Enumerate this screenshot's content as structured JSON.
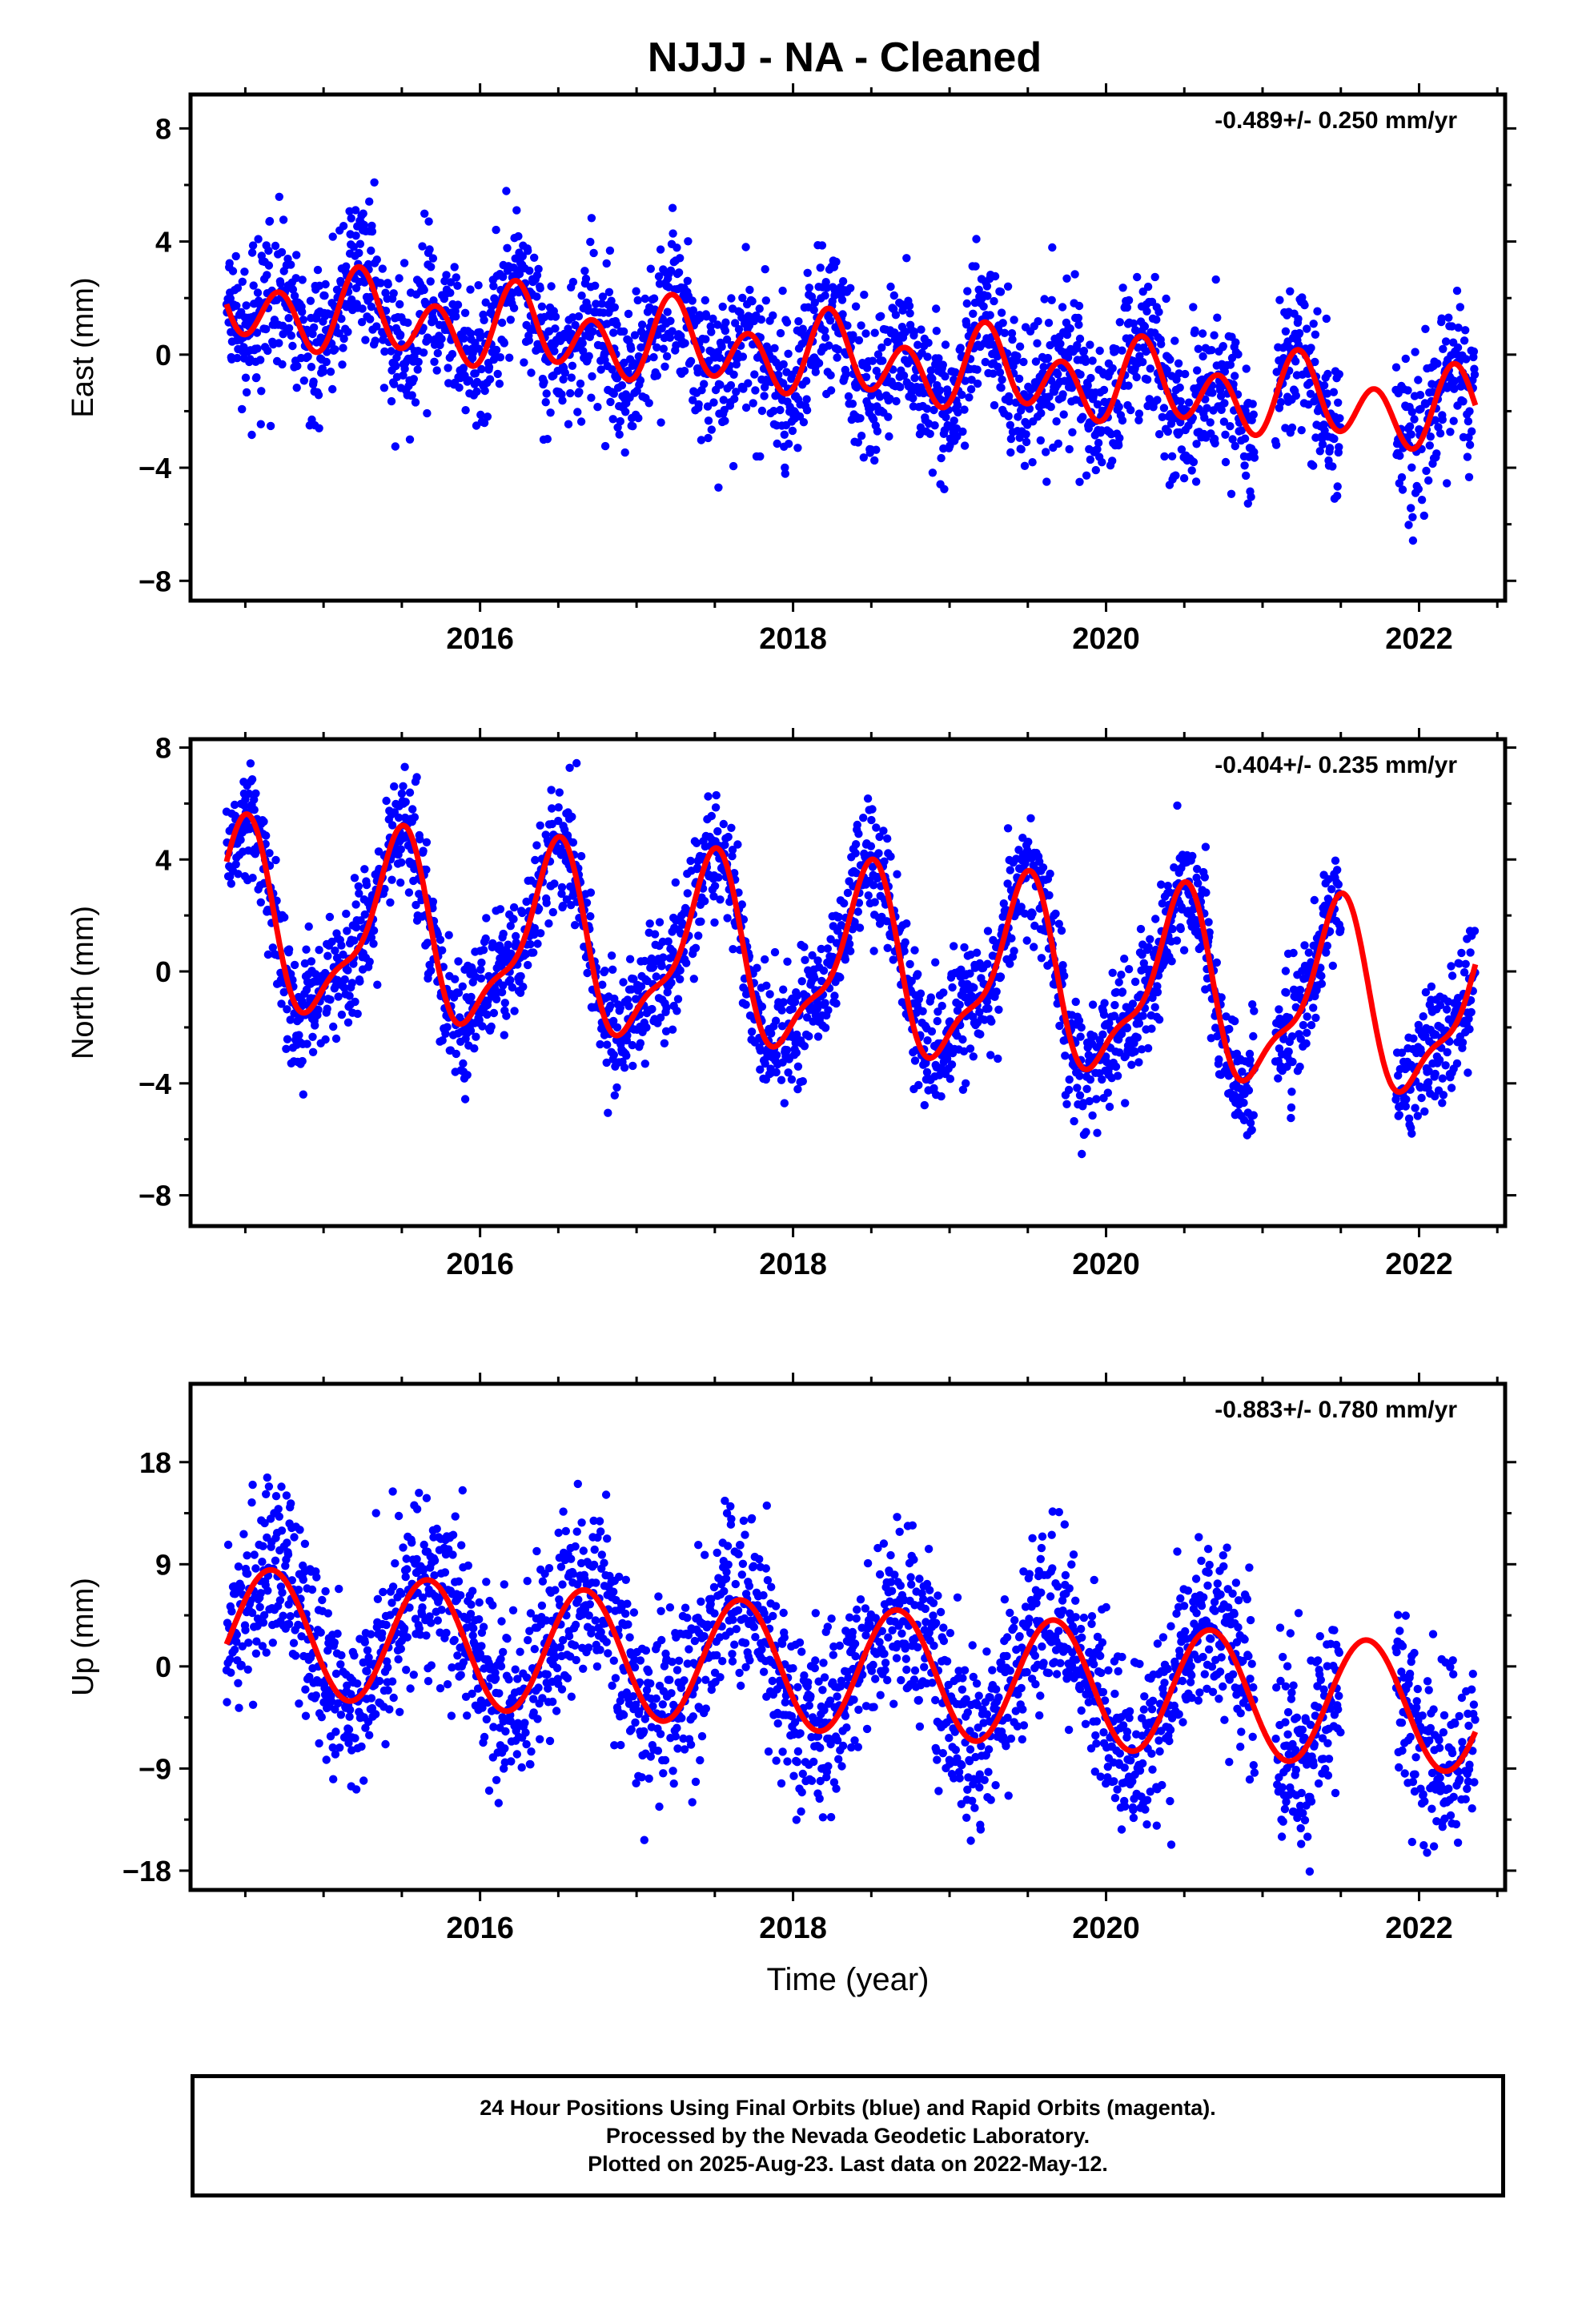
{
  "title": "NJJJ  - NA - Cleaned",
  "colors": {
    "data_points": "#0000ff",
    "fit_line": "#ff0000",
    "frame": "#000000"
  },
  "footer": {
    "line1": "24 Hour Positions Using Final Orbits (blue) and Rapid Orbits (magenta).",
    "line2": "Processed by the Nevada Geodetic Laboratory.",
    "line3": "Plotted on 2025-Aug-23. Last data on 2022-May-12."
  },
  "chart_data": [
    {
      "type": "scatter",
      "component": "east",
      "ylabel": "East (mm)",
      "xlabel": "",
      "xlim": [
        2014.15,
        2022.55
      ],
      "ylim": [
        -8.7,
        9.2
      ],
      "xticks": [
        2016,
        2018,
        2020,
        2022
      ],
      "yticks": [
        -8,
        -4,
        0,
        4,
        8
      ],
      "yticklabels": [
        "−8",
        "−4",
        "0",
        "4",
        "8"
      ],
      "rate": "-0.489+/- 0.250 mm/yr",
      "trend_mm_per_yr": -0.489,
      "intercept_mm": 0.0,
      "annual_sin": 0.6,
      "annual_cos": -0.1,
      "semiannual_sin": 0.4,
      "semiannual_cos": -1.1,
      "scatter_sd": 1.3,
      "data_start": 2014.38,
      "data_end": 2022.36,
      "gaps": [
        [
          2020.95,
          2021.08
        ],
        [
          2021.5,
          2021.85
        ]
      ]
    },
    {
      "type": "scatter",
      "component": "north",
      "ylabel": "North (mm)",
      "xlabel": "",
      "xlim": [
        2014.15,
        2022.55
      ],
      "ylim": [
        -9.1,
        8.3
      ],
      "xticks": [
        2016,
        2018,
        2020,
        2022
      ],
      "yticks": [
        -8,
        -4,
        0,
        4,
        8
      ],
      "yticklabels": [
        "−8",
        "−4",
        "0",
        "4",
        "8"
      ],
      "rate": "-0.404+/- 0.235 mm/yr",
      "trend_mm_per_yr": -0.404,
      "intercept_mm": 0.3,
      "annual_sin": 0.6,
      "annual_cos": -3.0,
      "semiannual_sin": 0.5,
      "semiannual_cos": 0.9,
      "scatter_sd": 1.1,
      "data_start": 2014.38,
      "data_end": 2022.36,
      "gaps": [
        [
          2020.95,
          2021.08
        ],
        [
          2021.5,
          2021.85
        ]
      ]
    },
    {
      "type": "scatter",
      "component": "up",
      "ylabel": "Up (mm)",
      "xlabel": "Time (year)",
      "xlim": [
        2014.15,
        2022.55
      ],
      "ylim": [
        -19.7,
        24.9
      ],
      "xticks": [
        2016,
        2018,
        2020,
        2022
      ],
      "yticks": [
        -18,
        -9,
        0,
        9,
        18
      ],
      "yticklabels": [
        "−18",
        "−9",
        "0",
        "9",
        "18"
      ],
      "rate": "-0.883+/- 0.780 mm/yr",
      "trend_mm_per_yr": -0.883,
      "intercept_mm": 0.0,
      "annual_sin": -4.8,
      "annual_cos": -2.8,
      "semiannual_sin": 0.0,
      "semiannual_cos": 0.0,
      "scatter_sd": 4.0,
      "data_start": 2014.38,
      "data_end": 2022.36,
      "gaps": [
        [
          2020.95,
          2021.08
        ],
        [
          2021.5,
          2021.85
        ]
      ]
    }
  ]
}
